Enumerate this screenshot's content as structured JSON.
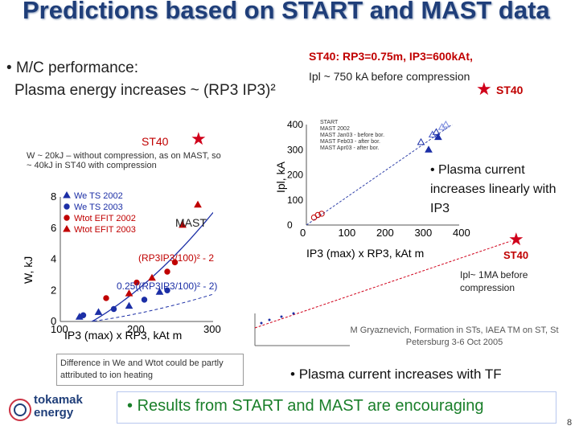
{
  "slide": {
    "title": "Predictions based on START and MAST data",
    "bullet_perf": "M/C performance:",
    "energy_line": "Plasma energy increases ~ (RP3 IP3)²",
    "st40_header": "ST40: RP3=0.75m, IP3=600kAt,",
    "ipl_line": "Ipl ~ 750 kA before compression",
    "st40_label": "ST40",
    "st40_left_label": "ST40",
    "w_note": "W ~ 20kJ – without compression, as on MAST, so ~ 40kJ in ST40 with compression",
    "mast_label": "MAST",
    "plasma_current_linear": "Plasma current increases linearly with IP3",
    "st40_mid_label": "ST40",
    "ipl_1ma": "Ipl~ 1MA before compression",
    "reference": "M Gryaznevich, Formation in STs, IAEA TM on ST, St Petersburg 3-6 Oct 2005",
    "difference_note": "Difference in We and Wtot could be partly attributed to ion heating",
    "plasma_tf": "Plasma current increases with TF",
    "results": "Results from START and MAST are encouraging",
    "page_number": "8",
    "logo_text": "tokamak energy"
  },
  "chart_data": [
    {
      "type": "scatter",
      "title": "",
      "xlabel": "IP3 (max) x RP3, kAt m",
      "ylabel": "W, kJ",
      "xlim": [
        100,
        300
      ],
      "ylim": [
        0,
        8
      ],
      "xticks": [
        100,
        200,
        300
      ],
      "yticks": [
        0,
        2,
        4,
        6,
        8
      ],
      "legend": [
        "We TS 2002",
        "We TS 2003",
        "Wtot EFIT 2002",
        "Wtot EFIT 2003"
      ],
      "annotations": [
        "(RP3IP3/100)² - 2",
        "0.25((RP3IP3/100)² - 2)"
      ],
      "series": [
        {
          "name": "We TS 2002",
          "x": [
            125,
            150,
            190,
            230
          ],
          "y": [
            0.3,
            0.6,
            1.0,
            1.9
          ]
        },
        {
          "name": "We TS 2003",
          "x": [
            130,
            170,
            210,
            240
          ],
          "y": [
            0.4,
            0.8,
            1.4,
            2.0
          ]
        },
        {
          "name": "Wtot EFIT 2002",
          "x": [
            160,
            200,
            240,
            250
          ],
          "y": [
            1.5,
            2.5,
            3.2,
            3.8
          ]
        },
        {
          "name": "Wtot EFIT 2003",
          "x": [
            190,
            220,
            260,
            280
          ],
          "y": [
            1.8,
            2.8,
            6.2,
            7.5
          ]
        }
      ]
    },
    {
      "type": "scatter",
      "title": "",
      "xlabel": "IP3 (max) x RP3, kAt m",
      "ylabel": "Ipl, kA",
      "xlim": [
        0,
        400
      ],
      "ylim": [
        0,
        400
      ],
      "xticks": [
        0,
        100,
        200,
        300,
        400
      ],
      "yticks": [
        0,
        100,
        200,
        300,
        400
      ],
      "legend": [
        "START",
        "MAST 2002",
        "MAST Jan03 - before bor.",
        "MAST Feb03 - after bor.",
        "MAST Apr03 - after bor."
      ],
      "series": [
        {
          "name": "START",
          "x": [
            20,
            30,
            40
          ],
          "y": [
            30,
            40,
            45
          ]
        },
        {
          "name": "MAST 2002",
          "x": [
            300,
            330,
            340
          ],
          "y": [
            330,
            360,
            370
          ]
        },
        {
          "name": "MAST Jan03 - before bor.",
          "x": [
            320,
            345
          ],
          "y": [
            300,
            350
          ]
        },
        {
          "name": "MAST Feb03 - after bor.",
          "x": [
            330
          ],
          "y": [
            360
          ]
        },
        {
          "name": "MAST Apr03 - after bor.",
          "x": [
            355,
            365
          ],
          "y": [
            390,
            400
          ]
        }
      ]
    }
  ]
}
